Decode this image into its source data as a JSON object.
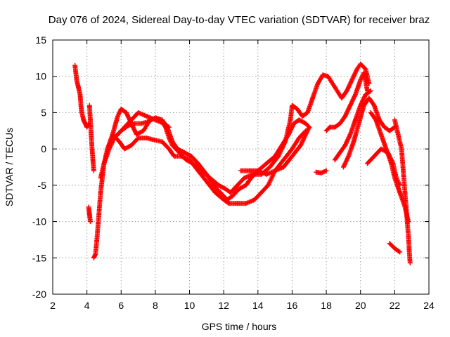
{
  "chart_data": {
    "type": "scatter",
    "title": "Day 076 of 2024, Sidereal Day-to-day VTEC variation (SDTVAR) for receiver braz",
    "xlabel": "GPS time / hours",
    "ylabel": "SDTVAR / TECUs",
    "xlim": [
      2,
      24
    ],
    "ylim": [
      -20,
      15
    ],
    "xticks": [
      "2",
      "4",
      "6",
      "8",
      "10",
      "12",
      "14",
      "16",
      "18",
      "20",
      "22",
      "24"
    ],
    "yticks": [
      "15",
      "10",
      "5",
      "0",
      "-5",
      "-10",
      "-15",
      "-20"
    ],
    "grid": true,
    "marker": "+",
    "color": "#ff0000",
    "series": [
      {
        "name": "track-1",
        "points": [
          [
            3.3,
            11.5
          ],
          [
            3.4,
            9.5
          ],
          [
            3.5,
            8.5
          ],
          [
            3.6,
            7.5
          ],
          [
            3.65,
            6
          ],
          [
            3.7,
            5
          ],
          [
            3.8,
            4
          ],
          [
            3.9,
            3.5
          ],
          [
            4.0,
            3.0
          ],
          [
            4.1,
            3.5
          ]
        ]
      },
      {
        "name": "track-2",
        "points": [
          [
            4.15,
            6
          ],
          [
            4.2,
            4
          ],
          [
            4.25,
            2
          ],
          [
            4.3,
            0
          ],
          [
            4.35,
            -1.5
          ],
          [
            4.4,
            -3
          ]
        ]
      },
      {
        "name": "track-3",
        "points": [
          [
            4.1,
            -8
          ],
          [
            4.15,
            -9
          ],
          [
            4.2,
            -10
          ]
        ]
      },
      {
        "name": "track-4",
        "points": [
          [
            4.4,
            -15
          ],
          [
            4.5,
            -14.5
          ],
          [
            4.6,
            -12
          ],
          [
            4.7,
            -9
          ],
          [
            4.8,
            -6
          ],
          [
            4.9,
            -4
          ],
          [
            5.0,
            -2
          ],
          [
            5.2,
            0
          ],
          [
            5.5,
            2
          ],
          [
            5.8,
            4.5
          ],
          [
            6.0,
            5.5
          ],
          [
            6.3,
            5
          ],
          [
            6.6,
            3.5
          ],
          [
            6.9,
            2
          ],
          [
            7.3,
            2.5
          ],
          [
            7.7,
            4
          ],
          [
            8.0,
            4.2
          ],
          [
            8.3,
            4
          ],
          [
            8.6,
            3
          ],
          [
            8.8,
            1.5
          ],
          [
            9.0,
            0.5
          ],
          [
            9.4,
            -0.5
          ],
          [
            9.8,
            -1.5
          ],
          [
            10.2,
            -2
          ],
          [
            10.7,
            -3
          ],
          [
            11.2,
            -4
          ],
          [
            11.7,
            -5
          ],
          [
            12.1,
            -5.5
          ],
          [
            12.4,
            -6
          ],
          [
            12.8,
            -5
          ],
          [
            13.2,
            -4
          ],
          [
            13.7,
            -3.5
          ],
          [
            14.2,
            -3.5
          ],
          [
            14.7,
            -2.5
          ],
          [
            15.2,
            -1
          ],
          [
            15.6,
            1
          ],
          [
            15.9,
            4
          ],
          [
            16.0,
            6
          ],
          [
            16.3,
            5.5
          ],
          [
            16.6,
            4.5
          ],
          [
            16.9,
            5
          ],
          [
            17.2,
            7
          ],
          [
            17.5,
            9
          ],
          [
            17.8,
            10.2
          ],
          [
            18.1,
            10
          ],
          [
            18.5,
            8.5
          ],
          [
            18.9,
            7
          ],
          [
            19.2,
            8
          ],
          [
            19.5,
            9.5
          ],
          [
            19.8,
            11
          ],
          [
            20.0,
            11.7
          ],
          [
            20.3,
            11
          ],
          [
            20.5,
            9
          ]
        ]
      },
      {
        "name": "track-5",
        "points": [
          [
            4.8,
            -4
          ],
          [
            5.0,
            -2
          ],
          [
            5.3,
            0
          ],
          [
            5.6,
            1.5
          ],
          [
            6.0,
            2.5
          ],
          [
            6.4,
            3.2
          ],
          [
            6.8,
            3.5
          ],
          [
            7.2,
            3.5
          ],
          [
            7.6,
            3.8
          ],
          [
            8.0,
            4.3
          ],
          [
            8.4,
            4
          ],
          [
            8.7,
            3
          ],
          [
            9.0,
            1
          ],
          [
            9.3,
            0
          ],
          [
            9.7,
            -0.5
          ],
          [
            10.1,
            -1
          ],
          [
            10.5,
            -2
          ],
          [
            11.0,
            -3.5
          ],
          [
            11.4,
            -5
          ],
          [
            11.8,
            -6
          ],
          [
            12.2,
            -7
          ],
          [
            12.5,
            -6.5
          ],
          [
            12.9,
            -5.5
          ],
          [
            13.3,
            -5
          ],
          [
            13.6,
            -4
          ],
          [
            14.0,
            -3
          ],
          [
            14.5,
            -2
          ],
          [
            15.0,
            -1
          ],
          [
            15.4,
            0.5
          ],
          [
            15.8,
            2
          ],
          [
            16.1,
            3.5
          ],
          [
            16.4,
            4
          ],
          [
            16.8,
            3.5
          ],
          [
            17.0,
            3
          ]
        ]
      },
      {
        "name": "track-6",
        "points": [
          [
            5.5,
            2
          ],
          [
            5.9,
            1
          ],
          [
            6.2,
            0
          ],
          [
            6.6,
            0.5
          ],
          [
            7.0,
            1.5
          ],
          [
            7.5,
            1.5
          ],
          [
            8.0,
            1.2
          ],
          [
            8.4,
            1
          ],
          [
            8.8,
            0
          ],
          [
            9.1,
            -1
          ],
          [
            9.5,
            -1
          ],
          [
            10.0,
            -1.5
          ],
          [
            10.5,
            -3
          ],
          [
            11.0,
            -4.5
          ],
          [
            11.5,
            -6
          ],
          [
            12.0,
            -7
          ],
          [
            12.3,
            -7.5
          ],
          [
            12.8,
            -7.5
          ],
          [
            13.3,
            -7.5
          ],
          [
            13.8,
            -7
          ],
          [
            14.2,
            -6
          ],
          [
            14.6,
            -5
          ],
          [
            15.0,
            -3
          ],
          [
            15.5,
            -1.5
          ],
          [
            16.0,
            0
          ],
          [
            16.4,
            1.5
          ],
          [
            16.8,
            2.5
          ]
        ]
      },
      {
        "name": "track-7",
        "points": [
          [
            5.8,
            2
          ],
          [
            6.2,
            3
          ],
          [
            6.6,
            4
          ],
          [
            7.0,
            5
          ],
          [
            7.5,
            4.5
          ],
          [
            8.0,
            4
          ],
          [
            8.5,
            3.5
          ],
          [
            8.8,
            3
          ]
        ]
      },
      {
        "name": "track-8",
        "points": [
          [
            13.0,
            -3
          ],
          [
            13.5,
            -3
          ],
          [
            14.0,
            -3
          ],
          [
            14.5,
            -3.5
          ],
          [
            15.0,
            -3
          ],
          [
            15.5,
            -2.5
          ],
          [
            16.0,
            -1
          ],
          [
            16.5,
            0.5
          ],
          [
            17.0,
            3
          ]
        ]
      },
      {
        "name": "track-9",
        "points": [
          [
            17.4,
            -3.2
          ],
          [
            17.7,
            -3.3
          ],
          [
            18.0,
            -3
          ]
        ]
      },
      {
        "name": "track-10",
        "points": [
          [
            18.0,
            2.5
          ],
          [
            18.2,
            3
          ],
          [
            18.5,
            3
          ],
          [
            18.8,
            3.5
          ],
          [
            19.1,
            4.5
          ],
          [
            19.4,
            6
          ],
          [
            19.7,
            7.5
          ],
          [
            20.0,
            9.5
          ],
          [
            20.2,
            10.5
          ],
          [
            20.4,
            8
          ]
        ]
      },
      {
        "name": "track-11",
        "points": [
          [
            18.5,
            -1.5
          ],
          [
            18.8,
            -0.5
          ],
          [
            19.1,
            0.5
          ],
          [
            19.4,
            2
          ],
          [
            19.7,
            4
          ],
          [
            20.0,
            6
          ],
          [
            20.3,
            7.5
          ],
          [
            20.6,
            8
          ]
        ]
      },
      {
        "name": "track-12",
        "points": [
          [
            19.0,
            -2.5
          ],
          [
            19.3,
            -1
          ],
          [
            19.6,
            1
          ],
          [
            19.9,
            3.5
          ],
          [
            20.2,
            6
          ],
          [
            20.5,
            7
          ],
          [
            20.8,
            6
          ],
          [
            21.1,
            4
          ],
          [
            21.4,
            3
          ],
          [
            21.7,
            2.5
          ],
          [
            22.0,
            3
          ]
        ]
      },
      {
        "name": "track-13",
        "points": [
          [
            20.6,
            5
          ],
          [
            20.9,
            4
          ],
          [
            21.2,
            2
          ],
          [
            21.5,
            0
          ],
          [
            21.8,
            -2
          ],
          [
            22.0,
            -4
          ],
          [
            22.3,
            -6
          ],
          [
            22.6,
            -8
          ],
          [
            22.8,
            -10
          ]
        ]
      },
      {
        "name": "track-14",
        "points": [
          [
            20.4,
            -2
          ],
          [
            20.8,
            -1
          ],
          [
            21.2,
            0
          ],
          [
            21.6,
            -0.5
          ],
          [
            21.9,
            -2
          ],
          [
            22.1,
            -4
          ],
          [
            22.3,
            -5
          ]
        ]
      },
      {
        "name": "track-15",
        "points": [
          [
            22.0,
            4
          ],
          [
            22.2,
            2
          ],
          [
            22.4,
            0
          ],
          [
            22.5,
            -3
          ],
          [
            22.6,
            -6
          ],
          [
            22.7,
            -9
          ],
          [
            22.8,
            -12
          ],
          [
            22.85,
            -14
          ],
          [
            22.9,
            -15.7
          ]
        ]
      },
      {
        "name": "track-16",
        "points": [
          [
            21.7,
            -13
          ],
          [
            22.0,
            -13.7
          ],
          [
            22.3,
            -14.2
          ]
        ]
      }
    ]
  }
}
